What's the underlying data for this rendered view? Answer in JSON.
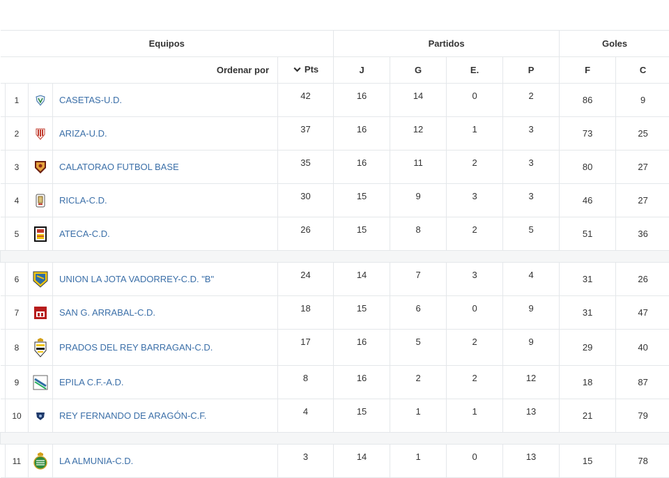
{
  "header": {
    "equipos": "Equipos",
    "partidos": "Partidos",
    "goles": "Goles",
    "ordenar_por": "Ordenar por",
    "pts": "Pts",
    "j": "J",
    "g": "G",
    "e": "E.",
    "p": "P",
    "f": "F",
    "c": "C"
  },
  "icons": {
    "sort": "chevron-down-icon"
  },
  "colors": {
    "link": "#3b6fa8",
    "border": "#e4e7ea"
  },
  "teams": [
    {
      "pos": "1",
      "name": "CASETAS-U.D.",
      "pts": "42",
      "j": "16",
      "g": "14",
      "e": "0",
      "p": "2",
      "f": "86",
      "c": "9",
      "crest": "casetas-crest-icon"
    },
    {
      "pos": "2",
      "name": "ARIZA-U.D.",
      "pts": "37",
      "j": "16",
      "g": "12",
      "e": "1",
      "p": "3",
      "f": "73",
      "c": "25",
      "crest": "ariza-crest-icon"
    },
    {
      "pos": "3",
      "name": "CALATORAO FUTBOL BASE",
      "pts": "35",
      "j": "16",
      "g": "11",
      "e": "2",
      "p": "3",
      "f": "80",
      "c": "27",
      "crest": "calatorao-crest-icon"
    },
    {
      "pos": "4",
      "name": "RICLA-C.D.",
      "pts": "30",
      "j": "15",
      "g": "9",
      "e": "3",
      "p": "3",
      "f": "46",
      "c": "27",
      "crest": "ricla-crest-icon"
    },
    {
      "pos": "5",
      "name": "ATECA-C.D.",
      "pts": "26",
      "j": "15",
      "g": "8",
      "e": "2",
      "p": "5",
      "f": "51",
      "c": "36",
      "crest": "ateca-crest-icon"
    },
    {
      "pos": "6",
      "name": "UNION LA JOTA VADORREY-C.D. \"B\"",
      "pts": "24",
      "j": "14",
      "g": "7",
      "e": "3",
      "p": "4",
      "f": "31",
      "c": "26",
      "crest": "union-la-jota-crest-icon"
    },
    {
      "pos": "7",
      "name": "SAN G. ARRABAL-C.D.",
      "pts": "18",
      "j": "15",
      "g": "6",
      "e": "0",
      "p": "9",
      "f": "31",
      "c": "47",
      "crest": "san-g-arrabal-crest-icon"
    },
    {
      "pos": "8",
      "name": "PRADOS DEL REY BARRAGAN-C.D.",
      "pts": "17",
      "j": "16",
      "g": "5",
      "e": "2",
      "p": "9",
      "f": "29",
      "c": "40",
      "crest": "prados-del-rey-crest-icon"
    },
    {
      "pos": "9",
      "name": "EPILA C.F.-A.D.",
      "pts": "8",
      "j": "16",
      "g": "2",
      "e": "2",
      "p": "12",
      "f": "18",
      "c": "87",
      "crest": "epila-crest-icon"
    },
    {
      "pos": "10",
      "name": "REY FERNANDO DE ARAGÓN-C.F.",
      "pts": "4",
      "j": "15",
      "g": "1",
      "e": "1",
      "p": "13",
      "f": "21",
      "c": "79",
      "crest": "rey-fernando-crest-icon"
    },
    {
      "pos": "11",
      "name": "LA ALMUNIA-C.D.",
      "pts": "3",
      "j": "14",
      "g": "1",
      "e": "0",
      "p": "13",
      "f": "15",
      "c": "78",
      "crest": "la-almunia-crest-icon"
    }
  ]
}
